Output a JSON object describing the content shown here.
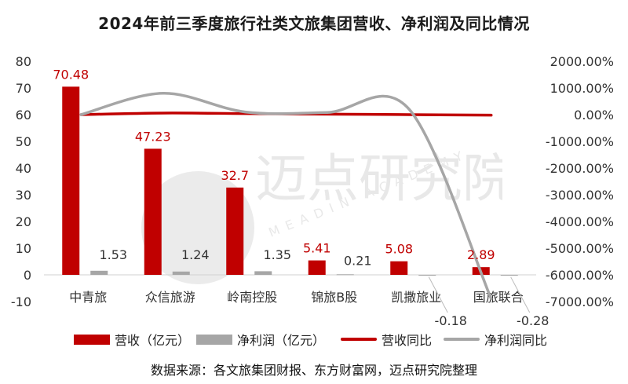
{
  "chart_data": {
    "type": "bar",
    "title": "2024年前三季度旅行社类文旅集团营收、净利润及同比情况",
    "categories": [
      "中青旅",
      "众信旅游",
      "岭南控股",
      "锦旅B股",
      "凯撒旅业",
      "国旅联合"
    ],
    "series": [
      {
        "name": "营收（亿元）",
        "kind": "bar",
        "axis": "left",
        "color": "#c00000",
        "values": [
          70.48,
          47.23,
          32.7,
          5.41,
          5.08,
          2.89
        ],
        "labels": [
          "70.48",
          "47.23",
          "32.7",
          "5.41",
          "5.08",
          "2.89"
        ]
      },
      {
        "name": "净利润（亿元）",
        "kind": "bar",
        "axis": "left",
        "color": "#a6a6a6",
        "values": [
          1.53,
          1.24,
          1.35,
          0.21,
          -0.18,
          -0.28
        ],
        "labels": [
          "1.53",
          "1.24",
          "1.35",
          "0.21",
          "-0.18",
          "-0.28"
        ]
      },
      {
        "name": "营收同比",
        "kind": "line",
        "axis": "right",
        "color": "#c00000",
        "values": [
          0,
          60,
          40,
          20,
          0,
          -20
        ]
      },
      {
        "name": "净利润同比",
        "kind": "line",
        "axis": "right",
        "color": "#a6a6a6",
        "values": [
          0,
          800,
          100,
          80,
          200,
          -6900
        ]
      }
    ],
    "y_left": {
      "min": -10,
      "max": 80,
      "ticks": [
        "-10",
        "0",
        "10",
        "20",
        "30",
        "40",
        "50",
        "60",
        "70",
        "80"
      ]
    },
    "y_right": {
      "min": -7000,
      "max": 2000,
      "ticks": [
        "-7000.00%",
        "-6000.00%",
        "-5000.00%",
        "-4000.00%",
        "-3000.00%",
        "-2000.00%",
        "-1000.00%",
        "0.00%",
        "1000.00%",
        "2000.00%"
      ]
    },
    "grid": false,
    "legend_position": "bottom"
  },
  "source": "数据来源：各文旅集团财报、东方财富网，迈点研究院整理",
  "watermark": {
    "cn": "迈点研究院",
    "en": "MEADIN ACADEMY"
  }
}
